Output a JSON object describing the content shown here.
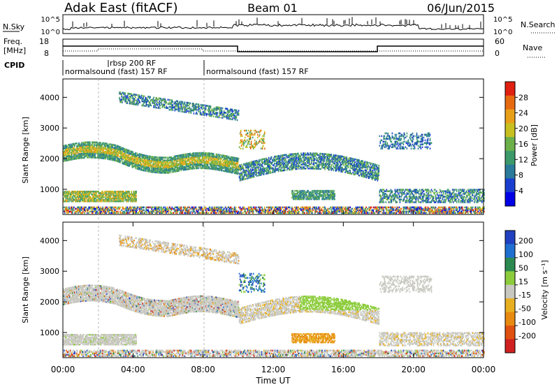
{
  "header": {
    "station": "Adak East (fitACF)",
    "beam": "Beam 01",
    "date": "06/Jun/2015"
  },
  "top_panels": {
    "nsky_label": "N.Sky",
    "nsky_ticks": [
      "10^5",
      "10^0"
    ],
    "nsearch_label": "N.Search",
    "nsearch_ticks": [
      "10^5",
      "10^0"
    ],
    "freq_label_1": "Freq.",
    "freq_label_2": "[MHz]",
    "freq_ticks": [
      "18",
      "8"
    ],
    "nave_label": "Nave",
    "nave_ticks": [
      "60",
      "0"
    ],
    "cpid_label": "CPID",
    "cpid_segments": [
      {
        "label": "normalsound (fast) 157 RF",
        "start_h": 0,
        "end_h": 8
      },
      {
        "label": "rbsp 200 RF",
        "start_h": 2,
        "end_h": 8
      },
      {
        "label": "normalsound (fast) 157 RF",
        "start_h": 8,
        "end_h": 24
      }
    ]
  },
  "chart_data": [
    {
      "type": "heatmap",
      "quantity": "power",
      "ylabel": "Slant Range [km]",
      "ylim": [
        180,
        4600
      ],
      "yticks": [
        1000,
        2000,
        3000,
        4000
      ],
      "colorbar": {
        "label": "Power [dB]",
        "ticks": [
          "4",
          "8",
          "12",
          "16",
          "20",
          "24",
          "28"
        ],
        "range": [
          0,
          32
        ]
      },
      "regions": [
        {
          "name": "far-scatter",
          "t": [
            3.2,
            10.0
          ],
          "r": [
            2950,
            4150
          ]
        },
        {
          "name": "main-band",
          "t": [
            0,
            10.0
          ],
          "r": [
            1500,
            2400
          ]
        },
        {
          "name": "near-band",
          "t": [
            0,
            4.2
          ],
          "r": [
            550,
            900
          ]
        },
        {
          "name": "post-10-band",
          "t": [
            10.0,
            18.0
          ],
          "r": [
            1100,
            2300
          ]
        },
        {
          "name": "late-scatter",
          "t": [
            18.0,
            24.0
          ],
          "r": [
            500,
            2800
          ]
        }
      ]
    },
    {
      "type": "heatmap",
      "quantity": "velocity",
      "ylabel": "Slant Range [km]",
      "xlabel": "Time UT",
      "xlim": [
        0,
        24
      ],
      "ylim": [
        180,
        4600
      ],
      "xticks": [
        "00:00",
        "04:00",
        "08:00",
        "12:00",
        "16:00",
        "20:00",
        "00:00"
      ],
      "yticks": [
        1000,
        2000,
        3000,
        4000
      ],
      "colorbar": {
        "label": "Velocity [m s⁻¹]",
        "ticks": [
          "200",
          "100",
          "50",
          "15",
          "-15",
          "-50",
          "-100",
          "-200"
        ]
      },
      "regions": [
        {
          "name": "mostly-gray",
          "t": [
            0,
            10.0
          ],
          "r": [
            1500,
            2400
          ]
        },
        {
          "name": "orange-patch",
          "t": [
            13.0,
            15.5
          ],
          "r": [
            650,
            950
          ]
        },
        {
          "name": "green-patch",
          "t": [
            13.5,
            18.0
          ],
          "r": [
            1700,
            2200
          ]
        }
      ]
    }
  ],
  "colors": {
    "power_scale": [
      "#0000e6",
      "#1a3fd0",
      "#2a7a9a",
      "#3c9a6a",
      "#6cb04a",
      "#c8c020",
      "#e8a018",
      "#e86a10",
      "#e02010"
    ],
    "velocity_scale": [
      "#2040c0",
      "#1f6fd0",
      "#2c8a50",
      "#8ccc3c",
      "#c8c8c0",
      "#e8b020",
      "#e88a10",
      "#e05010",
      "#d02020"
    ]
  }
}
